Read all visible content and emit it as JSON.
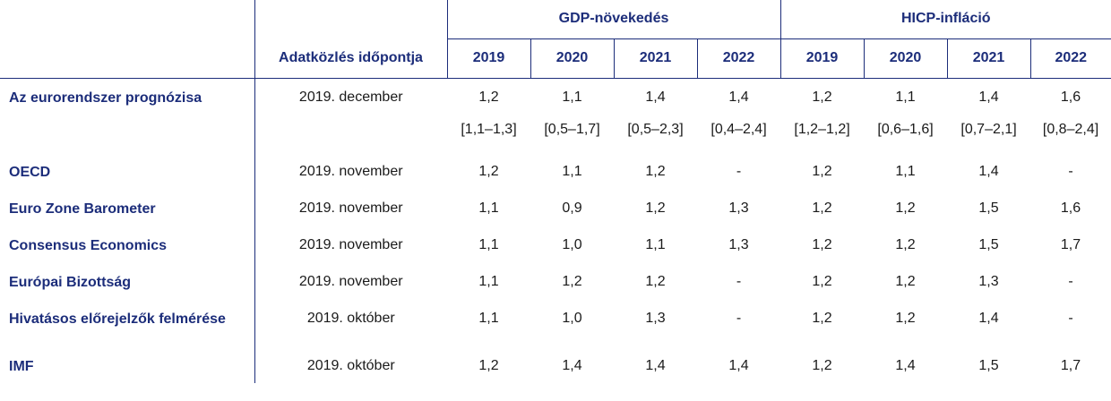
{
  "header": {
    "gdp_group": "GDP-növekedés",
    "hicp_group": "HICP-infláció",
    "date_col": "Adatközlés időpontja",
    "years": [
      "2019",
      "2020",
      "2021",
      "2022"
    ]
  },
  "rows": [
    {
      "label": "Az eurorendszer prognózisa",
      "date": "2019. december",
      "gdp": [
        "1,2",
        "1,1",
        "1,4",
        "1,4"
      ],
      "hicp": [
        "1,2",
        "1,1",
        "1,4",
        "1,6"
      ],
      "gdp_ranges": [
        "[1,1–1,3]",
        "[0,5–1,7]",
        "[0,5–2,3]",
        "[0,4–2,4]"
      ],
      "hicp_ranges": [
        "[1,2–1,2]",
        "[0,6–1,6]",
        "[0,7–2,1]",
        "[0,8–2,4]"
      ]
    },
    {
      "label": "OECD",
      "date": "2019. november",
      "gdp": [
        "1,2",
        "1,1",
        "1,2",
        "-"
      ],
      "hicp": [
        "1,2",
        "1,1",
        "1,4",
        "-"
      ]
    },
    {
      "label": "Euro Zone Barometer",
      "date": "2019. november",
      "gdp": [
        "1,1",
        "0,9",
        "1,2",
        "1,3"
      ],
      "hicp": [
        "1,2",
        "1,2",
        "1,5",
        "1,6"
      ]
    },
    {
      "label": "Consensus Economics",
      "date": "2019. november",
      "gdp": [
        "1,1",
        "1,0",
        "1,1",
        "1,3"
      ],
      "hicp": [
        "1,2",
        "1,2",
        "1,5",
        "1,7"
      ]
    },
    {
      "label": "Európai Bizottság",
      "date": "2019. november",
      "gdp": [
        "1,1",
        "1,2",
        "1,2",
        "-"
      ],
      "hicp": [
        "1,2",
        "1,2",
        "1,3",
        "-"
      ]
    },
    {
      "label": "Hivatásos előrejelzők felmérése",
      "date": "2019. október",
      "gdp": [
        "1,1",
        "1,0",
        "1,3",
        "-"
      ],
      "hicp": [
        "1,2",
        "1,2",
        "1,4",
        "-"
      ]
    },
    {
      "label": "IMF",
      "date": "2019. október",
      "gdp": [
        "1,2",
        "1,4",
        "1,4",
        "1,4"
      ],
      "hicp": [
        "1,2",
        "1,4",
        "1,5",
        "1,7"
      ]
    }
  ]
}
